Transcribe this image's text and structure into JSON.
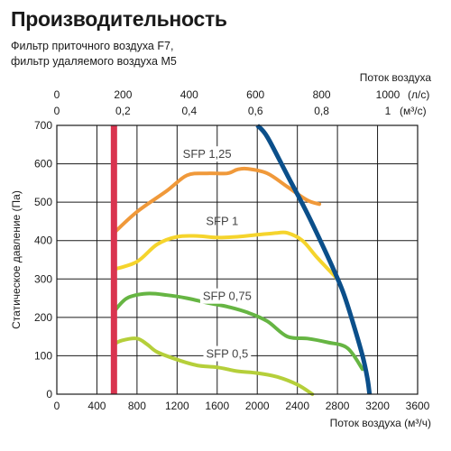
{
  "title": "Производительность",
  "subtitle_lines": [
    "Фильтр приточного воздуха F7,",
    "фильтр удаляемого воздуха M5"
  ],
  "chart_data": {
    "type": "line",
    "x_axis_bottom": {
      "label": "Поток воздуха (м³/ч)",
      "range": [
        0,
        3600
      ],
      "ticks": [
        0,
        400,
        800,
        1200,
        1600,
        2000,
        2400,
        2800,
        3200,
        3600
      ]
    },
    "x_axis_top": {
      "label": "Поток воздуха",
      "row1_ticks": [
        {
          "value": 0,
          "label": "0"
        },
        {
          "value": 200,
          "label": "200"
        },
        {
          "value": 400,
          "label": "400"
        },
        {
          "value": 600,
          "label": "600"
        },
        {
          "value": 800,
          "label": "800"
        },
        {
          "value": 1000,
          "label": "1000"
        }
      ],
      "row1_unit": "(л/с)",
      "row2_ticks": [
        {
          "value": 0,
          "label": "0"
        },
        {
          "value": 0.2,
          "label": "0,2"
        },
        {
          "value": 0.4,
          "label": "0,4"
        },
        {
          "value": 0.6,
          "label": "0,6"
        },
        {
          "value": 0.8,
          "label": "0,8"
        },
        {
          "value": 1,
          "label": "1"
        }
      ],
      "row2_unit": "(м³/с)"
    },
    "y_axis": {
      "label": "Статическое давление (Па)",
      "range": [
        0,
        700
      ],
      "ticks": [
        0,
        100,
        200,
        300,
        400,
        500,
        600,
        700
      ]
    },
    "grid": true,
    "series": [
      {
        "name": "SFP 1,25",
        "color": "#f0993a",
        "x": [
          570,
          800,
          1100,
          1300,
          1500,
          1700,
          1800,
          1900,
          2100,
          2300,
          2500,
          2620
        ],
        "y": [
          420,
          475,
          530,
          570,
          575,
          575,
          585,
          587,
          575,
          540,
          505,
          495
        ]
      },
      {
        "name": "SFP 1",
        "color": "#f5d42c",
        "x": [
          570,
          800,
          1000,
          1200,
          1400,
          1600,
          1800,
          2000,
          2200,
          2300,
          2450,
          2600,
          2800
        ],
        "y": [
          325,
          345,
          390,
          410,
          412,
          408,
          410,
          415,
          420,
          420,
          400,
          355,
          300
        ]
      },
      {
        "name": "SFP 0,75",
        "color": "#66b543",
        "x": [
          570,
          700,
          900,
          1100,
          1300,
          1500,
          1700,
          1900,
          2100,
          2300,
          2500,
          2700,
          2900,
          3050
        ],
        "y": [
          215,
          250,
          262,
          258,
          250,
          238,
          228,
          213,
          190,
          150,
          145,
          135,
          120,
          65
        ]
      },
      {
        "name": "SFP 0,5",
        "color": "#b5cf3a",
        "x": [
          570,
          650,
          800,
          900,
          1000,
          1200,
          1400,
          1600,
          1800,
          2000,
          2200,
          2400,
          2550
        ],
        "y": [
          130,
          140,
          145,
          130,
          110,
          90,
          75,
          70,
          60,
          55,
          45,
          25,
          0
        ]
      }
    ],
    "limit_lines": [
      {
        "kind": "vertical",
        "color": "#d9344f",
        "x": 570,
        "y_range": [
          0,
          700
        ]
      },
      {
        "kind": "fan-curve",
        "color": "#0b4f8a",
        "x": [
          2000,
          2100,
          2300,
          2500,
          2700,
          2850,
          2950,
          3050,
          3100,
          3120
        ],
        "y": [
          700,
          670,
          570,
          470,
          360,
          270,
          190,
          100,
          40,
          0
        ]
      }
    ]
  }
}
